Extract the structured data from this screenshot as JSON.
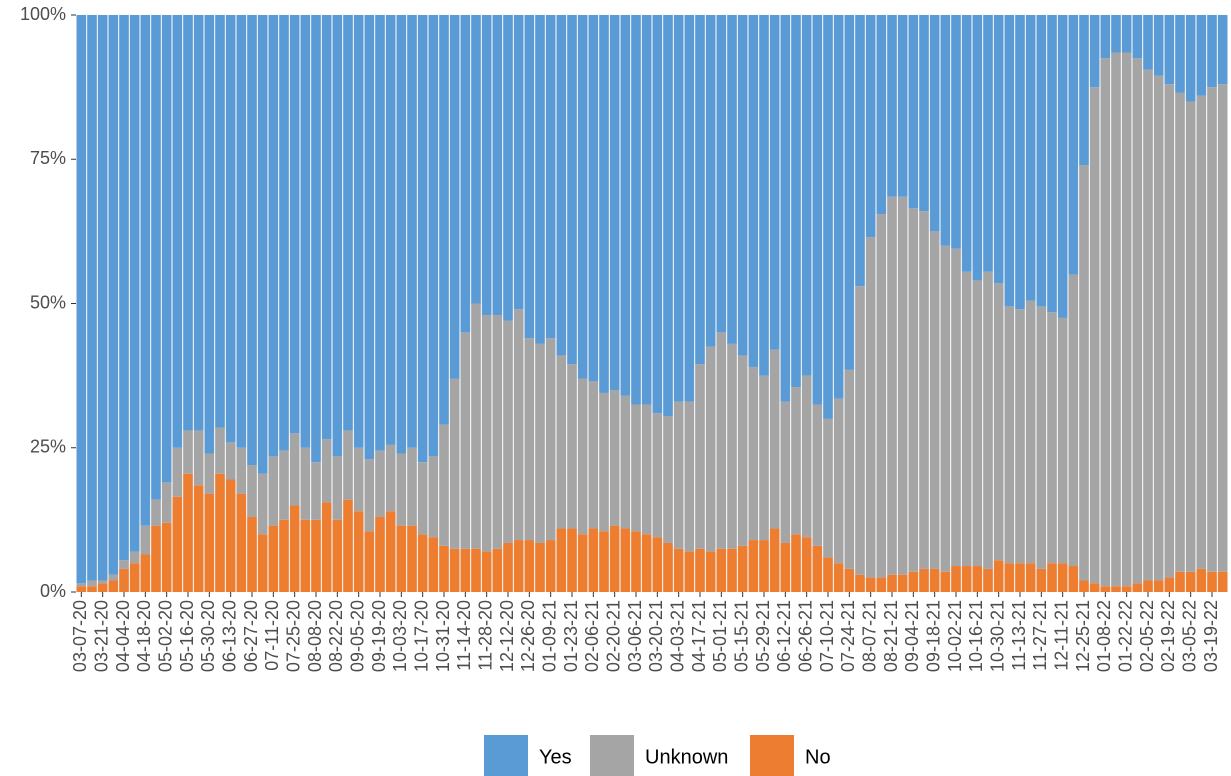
{
  "chart_data": {
    "type": "stacked_bar_percent",
    "categories": [
      "03-07-20",
      null,
      "03-21-20",
      null,
      "04-04-20",
      null,
      "04-18-20",
      null,
      "05-02-20",
      null,
      "05-16-20",
      null,
      "05-30-20",
      null,
      "06-13-20",
      null,
      "06-27-20",
      null,
      "07-11-20",
      null,
      "07-25-20",
      null,
      "08-08-20",
      null,
      "08-22-20",
      null,
      "09-05-20",
      null,
      "09-19-20",
      null,
      "10-03-20",
      null,
      "10-17-20",
      null,
      "10-31-20",
      null,
      "11-14-20",
      null,
      "11-28-20",
      null,
      "12-12-20",
      null,
      "12-26-20",
      null,
      "01-09-21",
      null,
      "01-23-21",
      null,
      "02-06-21",
      null,
      "02-20-21",
      null,
      "03-06-21",
      null,
      "03-20-21",
      null,
      "04-03-21",
      null,
      "04-17-21",
      null,
      "05-01-21",
      null,
      "05-15-21",
      null,
      "05-29-21",
      null,
      "06-12-21",
      null,
      "06-26-21",
      null,
      "07-10-21",
      null,
      "07-24-21",
      null,
      "08-07-21",
      null,
      "08-21-21",
      null,
      "09-04-21",
      null,
      "09-18-21",
      null,
      "10-02-21",
      null,
      "10-16-21",
      null,
      "10-30-21",
      null,
      "11-13-21",
      null,
      "11-27-21",
      null,
      "12-11-21",
      null,
      "12-25-21",
      null,
      "01-08-22",
      null,
      "01-22-22",
      null,
      "02-05-22",
      null,
      "02-19-22",
      null,
      "03-05-22",
      null,
      "03-19-22",
      null
    ],
    "series": [
      {
        "name": "Yes",
        "color": "#5b9bd5",
        "values": [
          98.5,
          98,
          98,
          97,
          94.5,
          93,
          88.5,
          84,
          81,
          75,
          72,
          72,
          76,
          71.5,
          74,
          75,
          78,
          79.5,
          76.5,
          75.5,
          72.5,
          75,
          77.5,
          73.5,
          76.5,
          72,
          75,
          77,
          75.5,
          74.5,
          76,
          75,
          77.5,
          76.5,
          71,
          63,
          55,
          50,
          52,
          52,
          53,
          51,
          56,
          57,
          56,
          59,
          60.5,
          63,
          63.5,
          65.5,
          65,
          66,
          67.5,
          67.5,
          69,
          69.5,
          67,
          67,
          60.5,
          57.5,
          55,
          57,
          59,
          61,
          62.5,
          58,
          67,
          64.5,
          62.5,
          67.5,
          70,
          66.5,
          61.5,
          47,
          38.5,
          34.5,
          31.5,
          31.5,
          33.5,
          34,
          37.5,
          40,
          40.5,
          44.5,
          46,
          44.5,
          46.5,
          50.5,
          51,
          49.5,
          50.5,
          51.5,
          52.5,
          45,
          26,
          12.5,
          7.5,
          6.5,
          6.5,
          7.5,
          9.5,
          10.5,
          12,
          13.5,
          15,
          14,
          12.5,
          12
        ]
      },
      {
        "name": "Unknown",
        "color": "#a5a5a5",
        "values": [
          0.5,
          1,
          0.5,
          1,
          1.5,
          2,
          5,
          4.5,
          7,
          8.5,
          7.5,
          9.5,
          7,
          8,
          6.5,
          8,
          9,
          10.5,
          12,
          12,
          12.5,
          12.5,
          10,
          11,
          11,
          12,
          11,
          12.5,
          11.5,
          11.5,
          12.5,
          13.5,
          12.5,
          14,
          21,
          29.5,
          37.5,
          42.5,
          41,
          40.5,
          38.5,
          40,
          35,
          34.5,
          35,
          30,
          28.5,
          27,
          25.5,
          24,
          23.5,
          23,
          22,
          22.5,
          21.5,
          22,
          25.5,
          26,
          32,
          35.5,
          37.5,
          35.5,
          33,
          30,
          28.5,
          31,
          24.5,
          25.5,
          28,
          24.5,
          24,
          28.5,
          34.5,
          50,
          59,
          63,
          65.5,
          65.5,
          63,
          62,
          58.5,
          56.5,
          55,
          51,
          49.5,
          51.5,
          48,
          44.5,
          44,
          45.5,
          45.5,
          43.5,
          42.5,
          50.5,
          72,
          86,
          91.5,
          92.5,
          92.5,
          91,
          88.5,
          87.5,
          85.5,
          83,
          81.5,
          82,
          84,
          84.5
        ]
      },
      {
        "name": "No",
        "color": "#ed7d31",
        "values": [
          1,
          1,
          1.5,
          2,
          4,
          5,
          6.5,
          11.5,
          12,
          16.5,
          20.5,
          18.5,
          17,
          20.5,
          19.5,
          17,
          13,
          10,
          11.5,
          12.5,
          15,
          12.5,
          12.5,
          15.5,
          12.5,
          16,
          14,
          10.5,
          13,
          14,
          11.5,
          11.5,
          10,
          9.5,
          8,
          7.5,
          7.5,
          7.5,
          7,
          7.5,
          8.5,
          9,
          9,
          8.5,
          9,
          11,
          11,
          10,
          11,
          10.5,
          11.5,
          11,
          10.5,
          10,
          9.5,
          8.5,
          7.5,
          7,
          7.5,
          7,
          7.5,
          7.5,
          8,
          9,
          9,
          11,
          8.5,
          10,
          9.5,
          8,
          6,
          5,
          4,
          3,
          2.5,
          2.5,
          3,
          3,
          3.5,
          4,
          4,
          3.5,
          4.5,
          4.5,
          4.5,
          4,
          5.5,
          5,
          5,
          5,
          4,
          5,
          5,
          4.5,
          2,
          1.5,
          1,
          1,
          1,
          1.5,
          2,
          2,
          2.5,
          3.5,
          3.5,
          4,
          3.5,
          3.5
        ]
      }
    ],
    "ylim": [
      0,
      100
    ],
    "yticks": [
      {
        "value": 0,
        "label": "0%"
      },
      {
        "value": 25,
        "label": "25%"
      },
      {
        "value": 50,
        "label": "50%"
      },
      {
        "value": 75,
        "label": "75%"
      },
      {
        "value": 100,
        "label": "100%"
      }
    ],
    "legend": "bottom"
  }
}
